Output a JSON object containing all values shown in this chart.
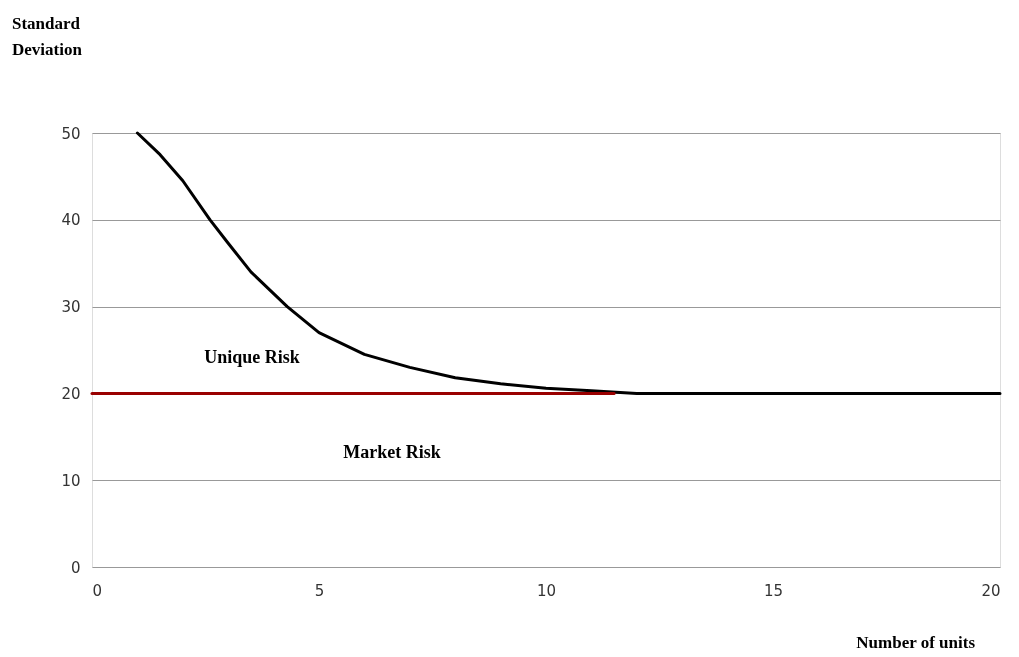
{
  "chart_data": {
    "type": "line",
    "xlabel": "Number of units",
    "ylabel": "Standard\nDeviation",
    "xlim": [
      0,
      20
    ],
    "xticks": [
      0,
      5,
      10,
      15,
      20
    ],
    "ylim": [
      0,
      50
    ],
    "yticks": [
      0,
      10,
      20,
      30,
      40,
      50
    ],
    "grid": "y",
    "marker": "none",
    "line_style": "solid",
    "series": [
      {
        "color": "#000000",
        "x": [
          1,
          1.5,
          2,
          2.6,
          3,
          3.5,
          4.3,
          5,
          6,
          7,
          8,
          9,
          10,
          11,
          12,
          14,
          16,
          18,
          20
        ],
        "values": [
          50,
          47.5,
          44.5,
          40,
          37.3,
          34,
          30,
          27,
          24.5,
          23,
          21.8,
          21.1,
          20.6,
          20.3,
          20,
          20,
          20,
          20,
          20
        ]
      },
      {
        "color": "#990000",
        "x": [
          0,
          11.5
        ],
        "values": [
          20,
          20
        ]
      }
    ],
    "annotations": [
      "Unique Risk",
      "Market Risk"
    ]
  }
}
